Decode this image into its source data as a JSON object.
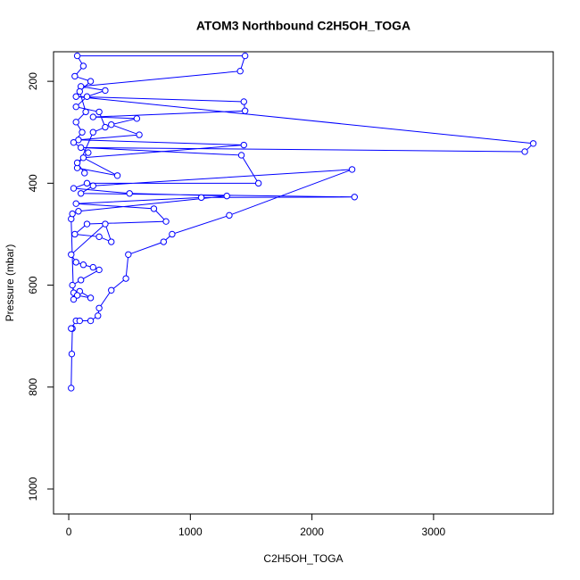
{
  "chart_data": {
    "type": "line",
    "title": "ATOM3 Northbound C2H5OH_TOGA",
    "x_label": "C2H5OH_TOGA",
    "y_label": "Pressure (mbar)",
    "xlim": [
      -125,
      3984
    ],
    "xticks": [
      0,
      1000,
      2000,
      3000
    ],
    "ylim": [
      1049,
      142
    ],
    "yticks": [
      200,
      400,
      600,
      800,
      1000
    ],
    "reverse_y": true,
    "markers": true,
    "series": [
      {
        "name": "C2H5OH_TOGA",
        "color": "#0000ff",
        "x": [
          20,
          25,
          30,
          20,
          60,
          90,
          180,
          240,
          250,
          350,
          470,
          490,
          780,
          850,
          1320,
          2330,
          200,
          100,
          2350,
          1090,
          60,
          700,
          800,
          150,
          50,
          250,
          350,
          300,
          20,
          60,
          120,
          200,
          250,
          100,
          30,
          40,
          90,
          180,
          70,
          40,
          20,
          30,
          80,
          1300,
          500,
          40,
          150,
          1560,
          1420,
          100,
          3750,
          3820,
          60,
          1440,
          1450,
          200,
          560,
          350,
          580,
          80,
          1440,
          120,
          400,
          70,
          200,
          300,
          250,
          60,
          150,
          300,
          100,
          1410,
          1450,
          70,
          120,
          50,
          180,
          90,
          140,
          60,
          110,
          40,
          160,
          70,
          130
        ],
        "values": [
          802,
          735,
          685,
          685,
          670,
          670,
          670,
          660,
          645,
          610,
          587,
          540,
          515,
          500,
          463,
          373,
          405,
          420,
          427,
          428,
          440,
          450,
          475,
          480,
          500,
          505,
          515,
          480,
          540,
          555,
          560,
          565,
          570,
          590,
          600,
          615,
          612,
          625,
          620,
          628,
          470,
          460,
          455,
          425,
          420,
          410,
          400,
          400,
          345,
          330,
          338,
          322,
          230,
          240,
          258,
          270,
          273,
          285,
          305,
          315,
          325,
          350,
          385,
          370,
          300,
          290,
          260,
          250,
          230,
          218,
          210,
          180,
          150,
          150,
          170,
          190,
          200,
          220,
          260,
          280,
          300,
          320,
          340,
          360,
          380
        ]
      }
    ]
  }
}
